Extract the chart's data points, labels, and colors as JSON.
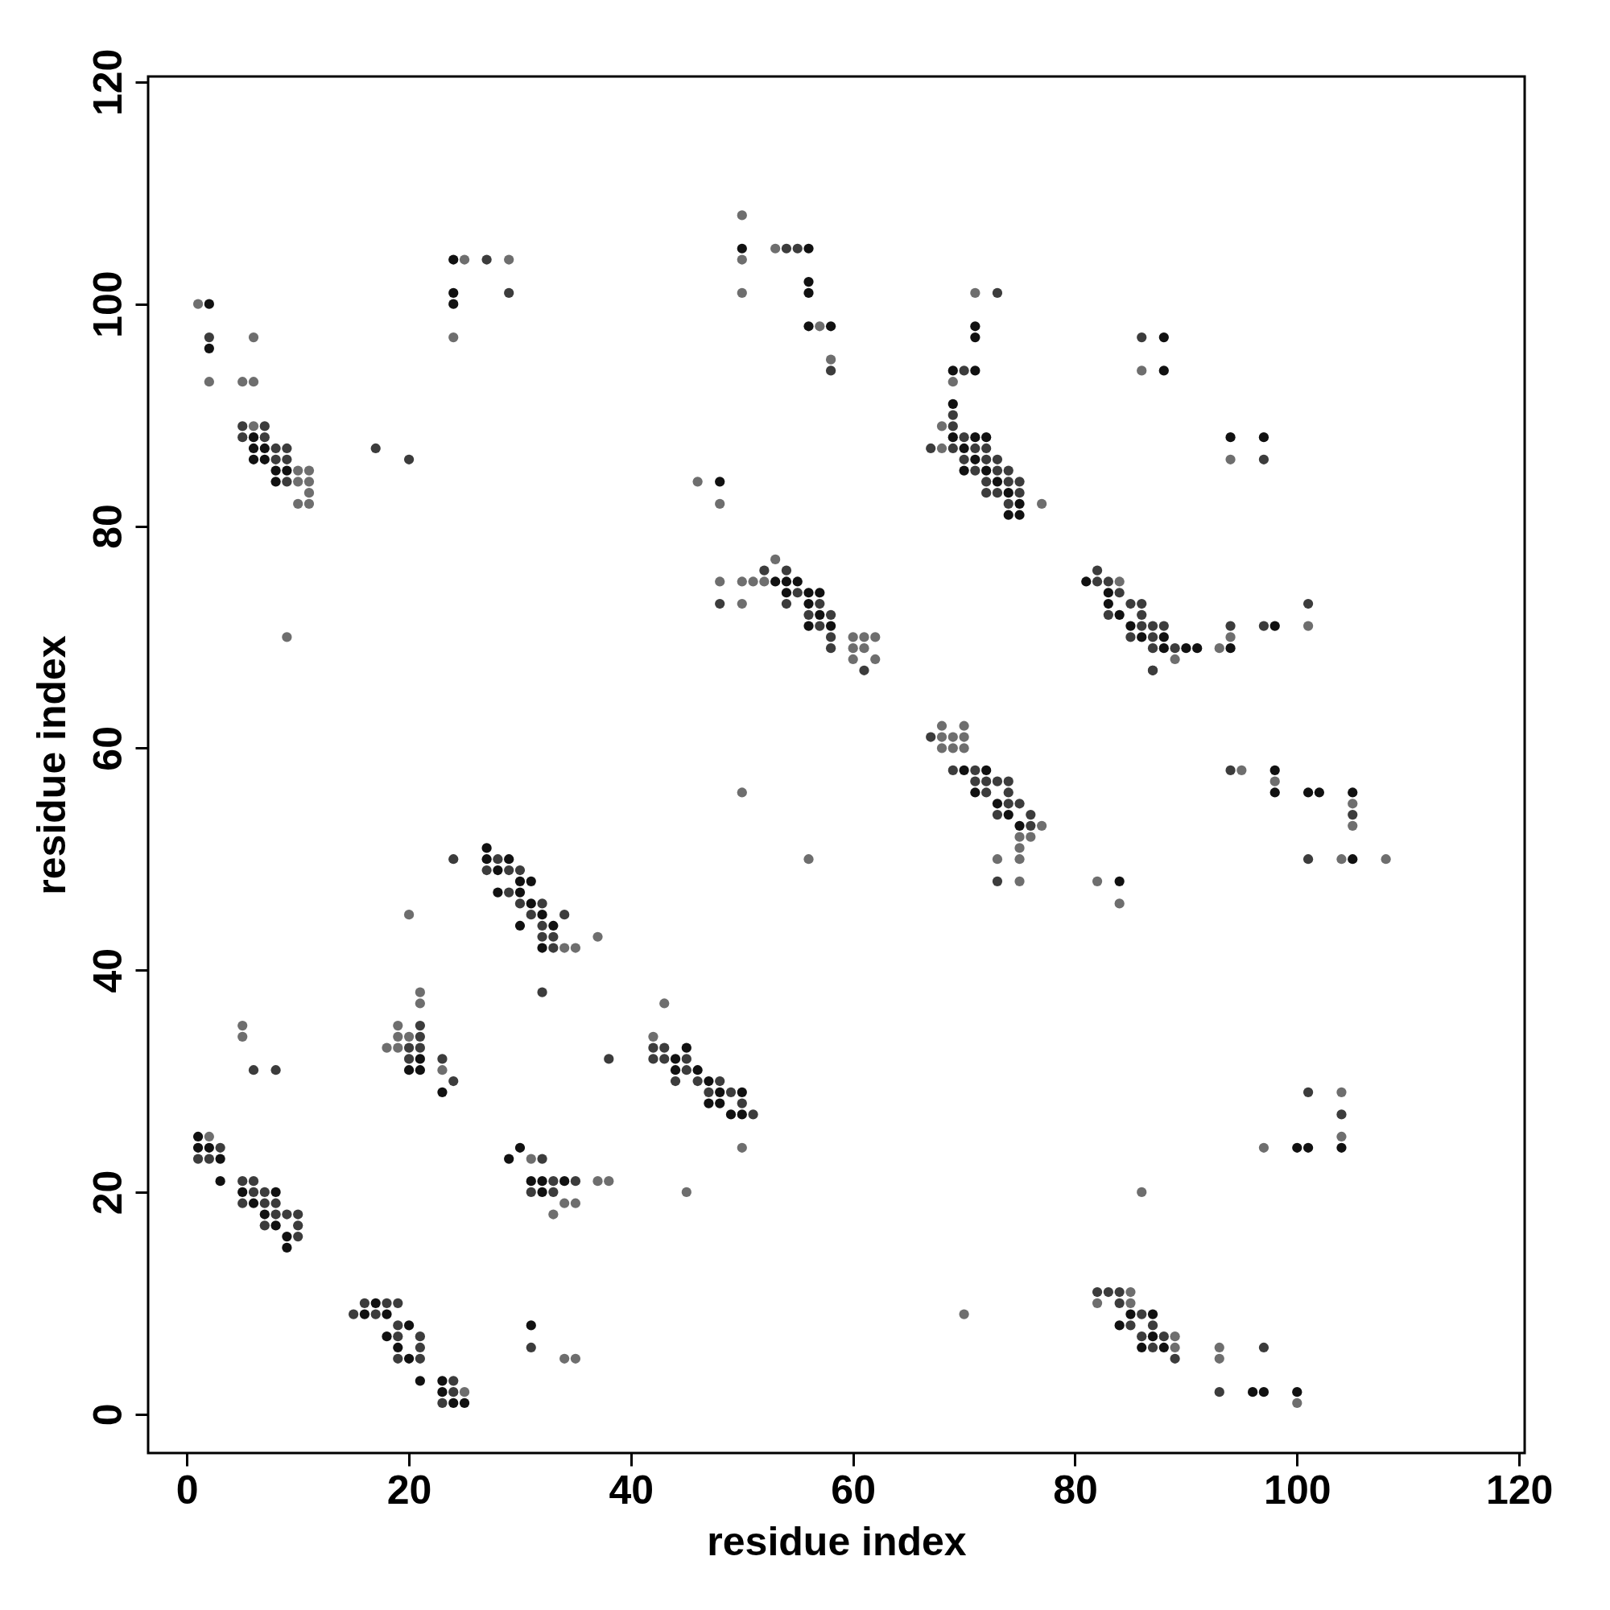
{
  "chart_data": {
    "type": "scatter",
    "xlabel": "residue index",
    "ylabel": "residue index",
    "xlim": [
      -3.5,
      120.5
    ],
    "ylim": [
      -3.5,
      120.5
    ],
    "xticks": [
      0,
      20,
      40,
      60,
      80,
      100,
      120
    ],
    "yticks": [
      0,
      20,
      40,
      60,
      80,
      100,
      120
    ],
    "grid": false,
    "legend": false,
    "marker": "circle",
    "series": [
      {
        "color": "#111111",
        "x": [
          2,
          2,
          24,
          24,
          24,
          50,
          56,
          56,
          56,
          56,
          58,
          48,
          6,
          6,
          7,
          6,
          7,
          8,
          9,
          8,
          53,
          54,
          55,
          54,
          56,
          57,
          56,
          57,
          56,
          58,
          71,
          71,
          69,
          71,
          69,
          69,
          71,
          72,
          70,
          71,
          70,
          72,
          73,
          74,
          75,
          74,
          75,
          88,
          88,
          94,
          97,
          81,
          83,
          83,
          84,
          85,
          86,
          88,
          88,
          90,
          91,
          94,
          98,
          70,
          72,
          71,
          73,
          74,
          75,
          98,
          98,
          101,
          102,
          105,
          105,
          84,
          27,
          27,
          29,
          28,
          30,
          31,
          28,
          30,
          31,
          32,
          30,
          33,
          32,
          21,
          20,
          21,
          23,
          44,
          45,
          44,
          46,
          47,
          48,
          50,
          47,
          48,
          49,
          50,
          1,
          2,
          1,
          3,
          3,
          5,
          8,
          6,
          7,
          8,
          9,
          9,
          29,
          30,
          32,
          34,
          31,
          32,
          17,
          16,
          18,
          18,
          20,
          19,
          20,
          21,
          23,
          23,
          24,
          25,
          31,
          84,
          86,
          87,
          87,
          85,
          88,
          96,
          97,
          100,
          100,
          101,
          104
        ],
        "values": [
          100,
          96,
          104,
          101,
          100,
          105,
          105,
          102,
          101,
          98,
          98,
          84,
          88,
          87,
          87,
          86,
          86,
          85,
          85,
          84,
          75,
          75,
          75,
          74,
          74,
          74,
          73,
          72,
          71,
          71,
          98,
          97,
          94,
          94,
          91,
          88,
          88,
          88,
          87,
          86,
          85,
          85,
          84,
          83,
          82,
          81,
          81,
          97,
          94,
          88,
          88,
          75,
          74,
          73,
          72,
          71,
          70,
          70,
          69,
          69,
          69,
          69,
          71,
          58,
          58,
          56,
          55,
          54,
          53,
          58,
          56,
          56,
          56,
          56,
          50,
          48,
          51,
          50,
          50,
          49,
          48,
          48,
          47,
          47,
          46,
          45,
          44,
          44,
          42,
          31,
          31,
          32,
          29,
          32,
          33,
          31,
          31,
          30,
          29,
          29,
          28,
          28,
          27,
          27,
          25,
          24,
          24,
          23,
          21,
          20,
          20,
          19,
          18,
          17,
          16,
          15,
          23,
          24,
          21,
          21,
          21,
          20,
          10,
          9,
          9,
          7,
          8,
          6,
          5,
          3,
          3,
          2,
          1,
          1,
          8,
          8,
          6,
          7,
          9,
          9,
          6,
          2,
          2,
          2,
          24,
          24,
          24
        ]
      },
      {
        "color": "#3c3c3c",
        "x": [
          2,
          5,
          7,
          5,
          7,
          8,
          9,
          8,
          9,
          9,
          17,
          20,
          27,
          29,
          54,
          55,
          58,
          48,
          52,
          54,
          55,
          54,
          57,
          56,
          58,
          57,
          58,
          58,
          61,
          73,
          70,
          69,
          69,
          67,
          70,
          69,
          71,
          72,
          70,
          72,
          73,
          71,
          73,
          74,
          72,
          74,
          75,
          72,
          73,
          75,
          74,
          86,
          97,
          82,
          82,
          83,
          84,
          85,
          86,
          83,
          86,
          86,
          87,
          88,
          85,
          87,
          87,
          89,
          87,
          94,
          97,
          101,
          67,
          69,
          71,
          71,
          72,
          73,
          74,
          72,
          74,
          74,
          75,
          73,
          76,
          76,
          73,
          94,
          105,
          101,
          24,
          28,
          29,
          30,
          27,
          29,
          30,
          32,
          31,
          34,
          32,
          32,
          33,
          33,
          32,
          21,
          21,
          20,
          21,
          20,
          23,
          24,
          6,
          8,
          38,
          42,
          43,
          42,
          43,
          45,
          44,
          46,
          48,
          47,
          49,
          50,
          51,
          45,
          1,
          2,
          3,
          6,
          5,
          6,
          7,
          5,
          7,
          8,
          8,
          9,
          10,
          7,
          10,
          10,
          32,
          33,
          35,
          31,
          33,
          16,
          18,
          19,
          15,
          17,
          19,
          19,
          21,
          21,
          21,
          19,
          24,
          24,
          23,
          31,
          82,
          84,
          83,
          84,
          86,
          85,
          87,
          86,
          88,
          87,
          89,
          87,
          93,
          97,
          101,
          104
        ],
        "values": [
          97,
          89,
          89,
          88,
          88,
          87,
          87,
          86,
          86,
          84,
          87,
          86,
          104,
          101,
          105,
          105,
          94,
          73,
          76,
          76,
          74,
          73,
          73,
          72,
          72,
          71,
          70,
          69,
          67,
          101,
          94,
          90,
          89,
          87,
          88,
          87,
          87,
          87,
          86,
          86,
          86,
          85,
          85,
          85,
          84,
          84,
          84,
          83,
          83,
          83,
          82,
          97,
          86,
          76,
          75,
          75,
          74,
          73,
          73,
          72,
          72,
          71,
          71,
          71,
          70,
          70,
          69,
          69,
          67,
          71,
          71,
          73,
          61,
          58,
          58,
          57,
          57,
          57,
          57,
          56,
          56,
          55,
          55,
          54,
          54,
          53,
          48,
          58,
          54,
          50,
          50,
          50,
          49,
          49,
          49,
          47,
          46,
          46,
          45,
          45,
          44,
          43,
          43,
          42,
          38,
          35,
          34,
          33,
          33,
          32,
          32,
          30,
          31,
          31,
          32,
          33,
          33,
          32,
          32,
          32,
          30,
          30,
          30,
          29,
          29,
          28,
          27,
          31,
          23,
          23,
          24,
          21,
          21,
          20,
          20,
          19,
          19,
          19,
          18,
          18,
          18,
          17,
          17,
          16,
          23,
          21,
          21,
          20,
          20,
          10,
          10,
          10,
          9,
          9,
          8,
          7,
          7,
          6,
          5,
          5,
          3,
          2,
          1,
          6,
          11,
          11,
          11,
          10,
          9,
          8,
          8,
          7,
          7,
          6,
          5,
          67,
          2,
          6,
          29,
          27
        ]
      },
      {
        "color": "#6e6e6e",
        "x": [
          1,
          2,
          5,
          6,
          6,
          6,
          10,
          11,
          10,
          11,
          11,
          10,
          11,
          9,
          25,
          29,
          24,
          50,
          50,
          50,
          53,
          57,
          58,
          46,
          48,
          48,
          50,
          50,
          51,
          52,
          53,
          60,
          61,
          62,
          60,
          61,
          60,
          62,
          50,
          56,
          71,
          69,
          68,
          68,
          77,
          86,
          94,
          84,
          89,
          93,
          94,
          101,
          68,
          70,
          68,
          69,
          70,
          68,
          69,
          70,
          77,
          75,
          76,
          75,
          73,
          75,
          75,
          95,
          98,
          105,
          105,
          104,
          108,
          82,
          84,
          37,
          20,
          34,
          35,
          21,
          21,
          18,
          19,
          19,
          20,
          19,
          23,
          5,
          5,
          43,
          42,
          50,
          45,
          2,
          31,
          34,
          35,
          33,
          37,
          38,
          25,
          34,
          35,
          82,
          85,
          85,
          89,
          89,
          86,
          70,
          93,
          93,
          100,
          97,
          104,
          104
        ],
        "values": [
          100,
          93,
          93,
          93,
          97,
          89,
          85,
          85,
          84,
          84,
          83,
          82,
          82,
          70,
          104,
          104,
          97,
          108,
          104,
          101,
          105,
          98,
          95,
          84,
          82,
          75,
          75,
          73,
          75,
          75,
          77,
          70,
          70,
          70,
          69,
          69,
          68,
          68,
          56,
          50,
          101,
          93,
          89,
          87,
          82,
          94,
          86,
          75,
          68,
          69,
          70,
          71,
          62,
          62,
          60,
          60,
          60,
          61,
          61,
          61,
          53,
          52,
          52,
          51,
          50,
          50,
          48,
          58,
          57,
          55,
          53,
          50,
          50,
          48,
          46,
          43,
          45,
          42,
          42,
          38,
          37,
          33,
          35,
          34,
          34,
          33,
          31,
          35,
          34,
          37,
          34,
          24,
          20,
          25,
          23,
          19,
          19,
          18,
          21,
          21,
          2,
          5,
          5,
          10,
          10,
          11,
          6,
          7,
          20,
          9,
          6,
          5,
          1,
          24,
          29,
          25
        ]
      }
    ]
  }
}
